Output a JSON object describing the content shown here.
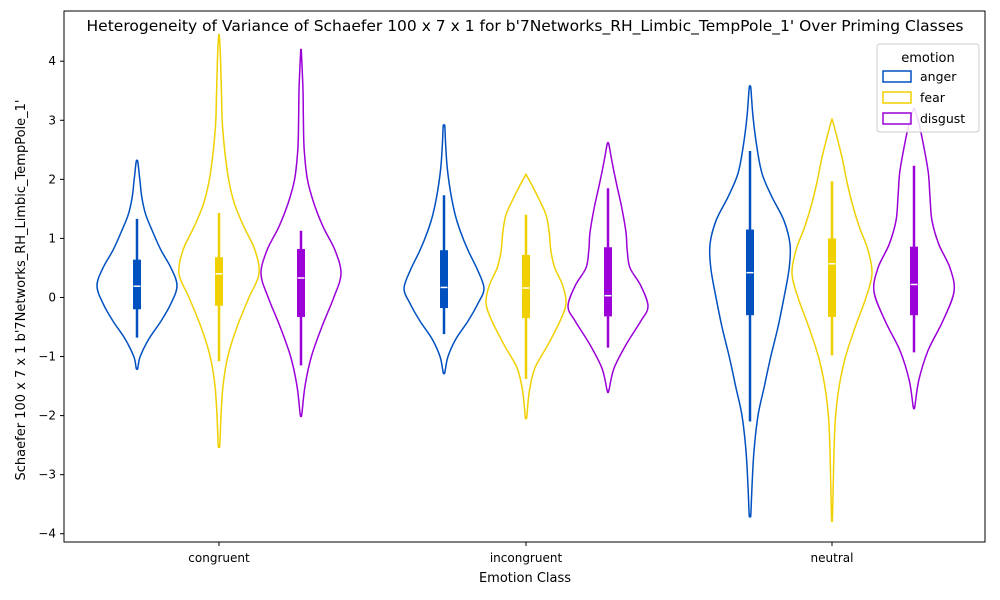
{
  "chart_data": {
    "type": "violin",
    "title": "Heterogeneity of Variance of Schaefer 100 x 7 x 1 for b'7Networks_RH_Limbic_TempPole_1' Over Priming Classes",
    "xlabel": "Emotion Class",
    "ylabel": "Schaefer 100 x 7 x 1 b'7Networks_RH_Limbic_TempPole_1'",
    "categories": [
      "congruent",
      "incongruent",
      "neutral"
    ],
    "ylim": [
      -4.14,
      4.85
    ],
    "yticks": [
      -4,
      -3,
      -2,
      -1,
      0,
      1,
      2,
      3,
      4
    ],
    "ytick_labels": [
      "−4",
      "−3",
      "−2",
      "−1",
      "0",
      "1",
      "2",
      "3",
      "4"
    ],
    "grid": false,
    "legend": {
      "title": "emotion",
      "position": "top-right"
    },
    "series": [
      {
        "name": "anger",
        "color": "#0050c0",
        "groups": [
          {
            "min": -1.2,
            "max": 2.3,
            "whisker_low": -0.68,
            "whisker_high": 1.33,
            "q1": -0.2,
            "median": 0.19,
            "q3": 0.64,
            "density": [
              [
                -1.2,
                0.02
              ],
              [
                -1.0,
                0.08
              ],
              [
                -0.7,
                0.3
              ],
              [
                -0.4,
                0.6
              ],
              [
                -0.1,
                0.85
              ],
              [
                0.2,
                1.0
              ],
              [
                0.5,
                0.85
              ],
              [
                0.8,
                0.6
              ],
              [
                1.1,
                0.4
              ],
              [
                1.4,
                0.22
              ],
              [
                1.7,
                0.12
              ],
              [
                2.0,
                0.07
              ],
              [
                2.3,
                0.02
              ]
            ]
          },
          {
            "min": -1.27,
            "max": 2.9,
            "whisker_low": -0.62,
            "whisker_high": 1.73,
            "q1": -0.18,
            "median": 0.17,
            "q3": 0.8,
            "density": [
              [
                -1.27,
                0.02
              ],
              [
                -1.0,
                0.1
              ],
              [
                -0.7,
                0.3
              ],
              [
                -0.4,
                0.6
              ],
              [
                -0.1,
                0.85
              ],
              [
                0.15,
                1.0
              ],
              [
                0.45,
                0.85
              ],
              [
                0.8,
                0.6
              ],
              [
                1.1,
                0.42
              ],
              [
                1.4,
                0.28
              ],
              [
                1.8,
                0.16
              ],
              [
                2.2,
                0.08
              ],
              [
                2.6,
                0.04
              ],
              [
                2.9,
                0.02
              ]
            ]
          },
          {
            "min": -3.68,
            "max": 3.55,
            "whisker_low": -2.1,
            "whisker_high": 2.48,
            "q1": -0.3,
            "median": 0.42,
            "q3": 1.15,
            "density": [
              [
                -3.68,
                0.02
              ],
              [
                -3.2,
                0.05
              ],
              [
                -2.6,
                0.1
              ],
              [
                -2.0,
                0.2
              ],
              [
                -1.5,
                0.36
              ],
              [
                -1.0,
                0.52
              ],
              [
                -0.5,
                0.7
              ],
              [
                0.0,
                0.85
              ],
              [
                0.5,
                0.98
              ],
              [
                0.9,
                1.0
              ],
              [
                1.3,
                0.85
              ],
              [
                1.7,
                0.55
              ],
              [
                2.1,
                0.3
              ],
              [
                2.6,
                0.16
              ],
              [
                3.1,
                0.07
              ],
              [
                3.55,
                0.02
              ]
            ]
          }
        ]
      },
      {
        "name": "fear",
        "color": "#f0d000",
        "groups": [
          {
            "min": -2.5,
            "max": 4.42,
            "whisker_low": -1.08,
            "whisker_high": 1.43,
            "q1": -0.14,
            "median": 0.4,
            "q3": 0.68,
            "density": [
              [
                -2.5,
                0.02
              ],
              [
                -2.0,
                0.05
              ],
              [
                -1.5,
                0.1
              ],
              [
                -1.0,
                0.22
              ],
              [
                -0.5,
                0.45
              ],
              [
                0.0,
                0.75
              ],
              [
                0.4,
                1.0
              ],
              [
                0.8,
                0.9
              ],
              [
                1.2,
                0.62
              ],
              [
                1.6,
                0.38
              ],
              [
                2.0,
                0.24
              ],
              [
                2.5,
                0.14
              ],
              [
                3.0,
                0.08
              ],
              [
                3.5,
                0.06
              ],
              [
                4.0,
                0.04
              ],
              [
                4.42,
                0.01
              ]
            ]
          },
          {
            "min": -2.02,
            "max": 2.06,
            "whisker_low": -1.38,
            "whisker_high": 1.4,
            "q1": -0.35,
            "median": 0.16,
            "q3": 0.72,
            "density": [
              [
                -2.02,
                0.02
              ],
              [
                -1.6,
                0.08
              ],
              [
                -1.2,
                0.22
              ],
              [
                -0.8,
                0.55
              ],
              [
                -0.4,
                0.85
              ],
              [
                -0.1,
                1.0
              ],
              [
                0.2,
                0.92
              ],
              [
                0.5,
                0.72
              ],
              [
                0.8,
                0.62
              ],
              [
                1.1,
                0.58
              ],
              [
                1.4,
                0.5
              ],
              [
                1.7,
                0.3
              ],
              [
                2.06,
                0.02
              ]
            ]
          },
          {
            "min": -3.75,
            "max": 2.98,
            "whisker_low": -0.98,
            "whisker_high": 1.97,
            "q1": -0.33,
            "median": 0.57,
            "q3": 1.0,
            "density": [
              [
                -3.75,
                0.01
              ],
              [
                -3.2,
                0.03
              ],
              [
                -2.6,
                0.05
              ],
              [
                -2.0,
                0.09
              ],
              [
                -1.5,
                0.18
              ],
              [
                -1.0,
                0.34
              ],
              [
                -0.5,
                0.58
              ],
              [
                0.0,
                0.85
              ],
              [
                0.4,
                1.0
              ],
              [
                0.8,
                0.9
              ],
              [
                1.2,
                0.68
              ],
              [
                1.6,
                0.5
              ],
              [
                2.0,
                0.36
              ],
              [
                2.4,
                0.24
              ],
              [
                2.98,
                0.02
              ]
            ]
          }
        ]
      },
      {
        "name": "disgust",
        "color": "#9b00d8",
        "groups": [
          {
            "min": -1.98,
            "max": 4.15,
            "whisker_low": -1.15,
            "whisker_high": 1.13,
            "q1": -0.33,
            "median": 0.33,
            "q3": 0.82,
            "density": [
              [
                -1.98,
                0.02
              ],
              [
                -1.5,
                0.1
              ],
              [
                -1.0,
                0.26
              ],
              [
                -0.5,
                0.52
              ],
              [
                0.0,
                0.82
              ],
              [
                0.4,
                1.0
              ],
              [
                0.8,
                0.85
              ],
              [
                1.2,
                0.55
              ],
              [
                1.6,
                0.32
              ],
              [
                2.0,
                0.16
              ],
              [
                2.5,
                0.08
              ],
              [
                3.0,
                0.06
              ],
              [
                3.5,
                0.05
              ],
              [
                4.15,
                0.01
              ]
            ]
          },
          {
            "min": -1.58,
            "max": 2.6,
            "whisker_low": -0.85,
            "whisker_high": 1.85,
            "q1": -0.32,
            "median": 0.03,
            "q3": 0.85,
            "density": [
              [
                -1.58,
                0.02
              ],
              [
                -1.2,
                0.15
              ],
              [
                -0.8,
                0.45
              ],
              [
                -0.4,
                0.82
              ],
              [
                -0.15,
                1.0
              ],
              [
                0.2,
                0.82
              ],
              [
                0.5,
                0.55
              ],
              [
                0.8,
                0.48
              ],
              [
                1.1,
                0.45
              ],
              [
                1.5,
                0.35
              ],
              [
                1.9,
                0.22
              ],
              [
                2.3,
                0.1
              ],
              [
                2.6,
                0.02
              ]
            ]
          },
          {
            "min": -1.85,
            "max": 3.18,
            "whisker_low": -0.93,
            "whisker_high": 2.23,
            "q1": -0.3,
            "median": 0.22,
            "q3": 0.86,
            "density": [
              [
                -1.85,
                0.02
              ],
              [
                -1.4,
                0.12
              ],
              [
                -0.9,
                0.35
              ],
              [
                -0.4,
                0.72
              ],
              [
                0.1,
                1.0
              ],
              [
                0.5,
                0.9
              ],
              [
                0.9,
                0.62
              ],
              [
                1.3,
                0.45
              ],
              [
                1.7,
                0.4
              ],
              [
                2.1,
                0.36
              ],
              [
                2.5,
                0.26
              ],
              [
                2.9,
                0.14
              ],
              [
                3.18,
                0.02
              ]
            ]
          }
        ]
      }
    ]
  }
}
